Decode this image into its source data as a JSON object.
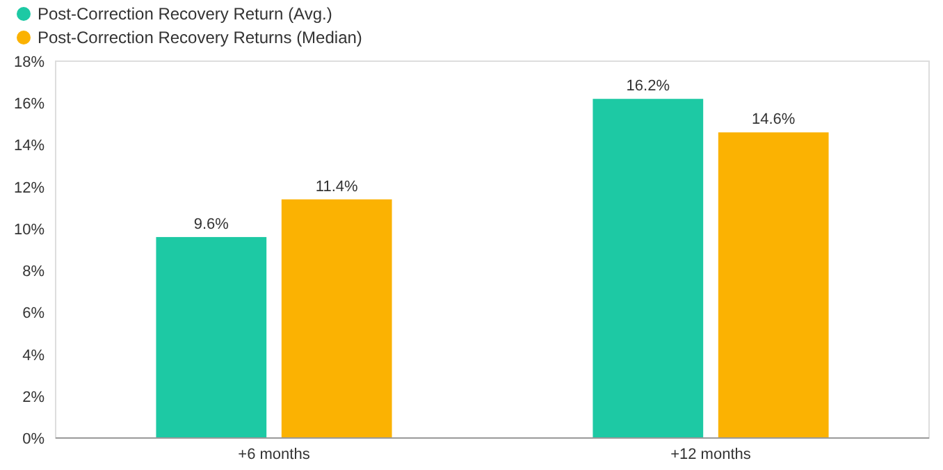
{
  "chart_data": {
    "type": "bar",
    "categories": [
      "+6 months",
      "+12 months"
    ],
    "series": [
      {
        "name": "Post-Correction Recovery Return (Avg.)",
        "color": "#1dc9a4",
        "values": [
          9.6,
          16.2
        ],
        "value_labels": [
          "9.6%",
          "16.2%"
        ]
      },
      {
        "name": "Post-Correction Recovery Returns (Median)",
        "color": "#fbb202",
        "values": [
          11.4,
          14.6
        ],
        "value_labels": [
          "11.4%",
          "14.6%"
        ]
      }
    ],
    "ylim": [
      0,
      18
    ],
    "yticks": [
      {
        "value": 0,
        "label": "0%"
      },
      {
        "value": 2,
        "label": "2%"
      },
      {
        "value": 4,
        "label": "4%"
      },
      {
        "value": 6,
        "label": "6%"
      },
      {
        "value": 8,
        "label": "8%"
      },
      {
        "value": 10,
        "label": "10%"
      },
      {
        "value": 12,
        "label": "12%"
      },
      {
        "value": 14,
        "label": "14%"
      },
      {
        "value": 16,
        "label": "16%"
      },
      {
        "value": 18,
        "label": "18%"
      }
    ],
    "grid": false,
    "legend": "top left"
  }
}
